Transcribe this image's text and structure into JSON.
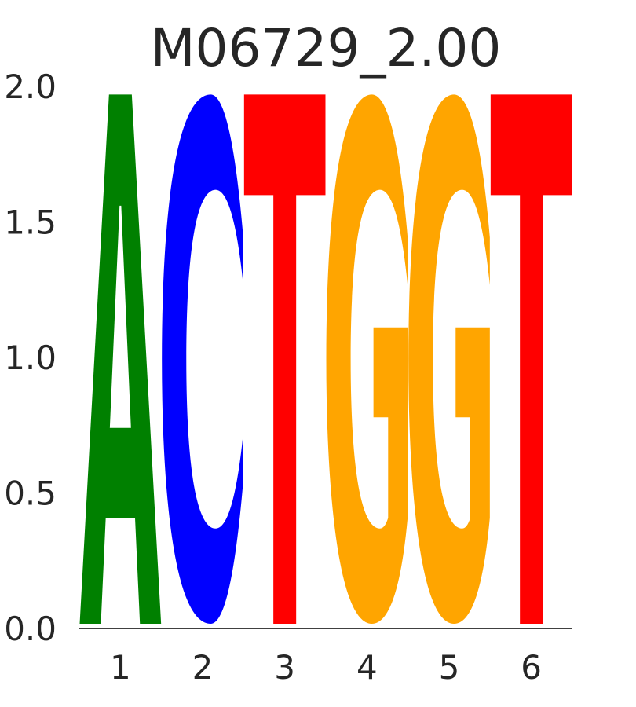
{
  "chart_data": {
    "type": "sequence-logo",
    "title": "M06729_2.00",
    "xlabel": "",
    "ylabel": "",
    "ylim": [
      0,
      2
    ],
    "yticks": [
      "0.0",
      "0.5",
      "1.0",
      "1.5",
      "2.0"
    ],
    "positions": [
      "1",
      "2",
      "3",
      "4",
      "5",
      "6"
    ],
    "letters": [
      {
        "position": "1",
        "letter": "A",
        "height": 1.97
      },
      {
        "position": "2",
        "letter": "C",
        "height": 1.97
      },
      {
        "position": "3",
        "letter": "T",
        "height": 1.97
      },
      {
        "position": "4",
        "letter": "G",
        "height": 1.97
      },
      {
        "position": "5",
        "letter": "G",
        "height": 1.97
      },
      {
        "position": "6",
        "letter": "T",
        "height": 1.97
      }
    ],
    "colors": {
      "A": "#008000",
      "C": "#0000ff",
      "G": "#ffa500",
      "T": "#ff0000"
    }
  }
}
